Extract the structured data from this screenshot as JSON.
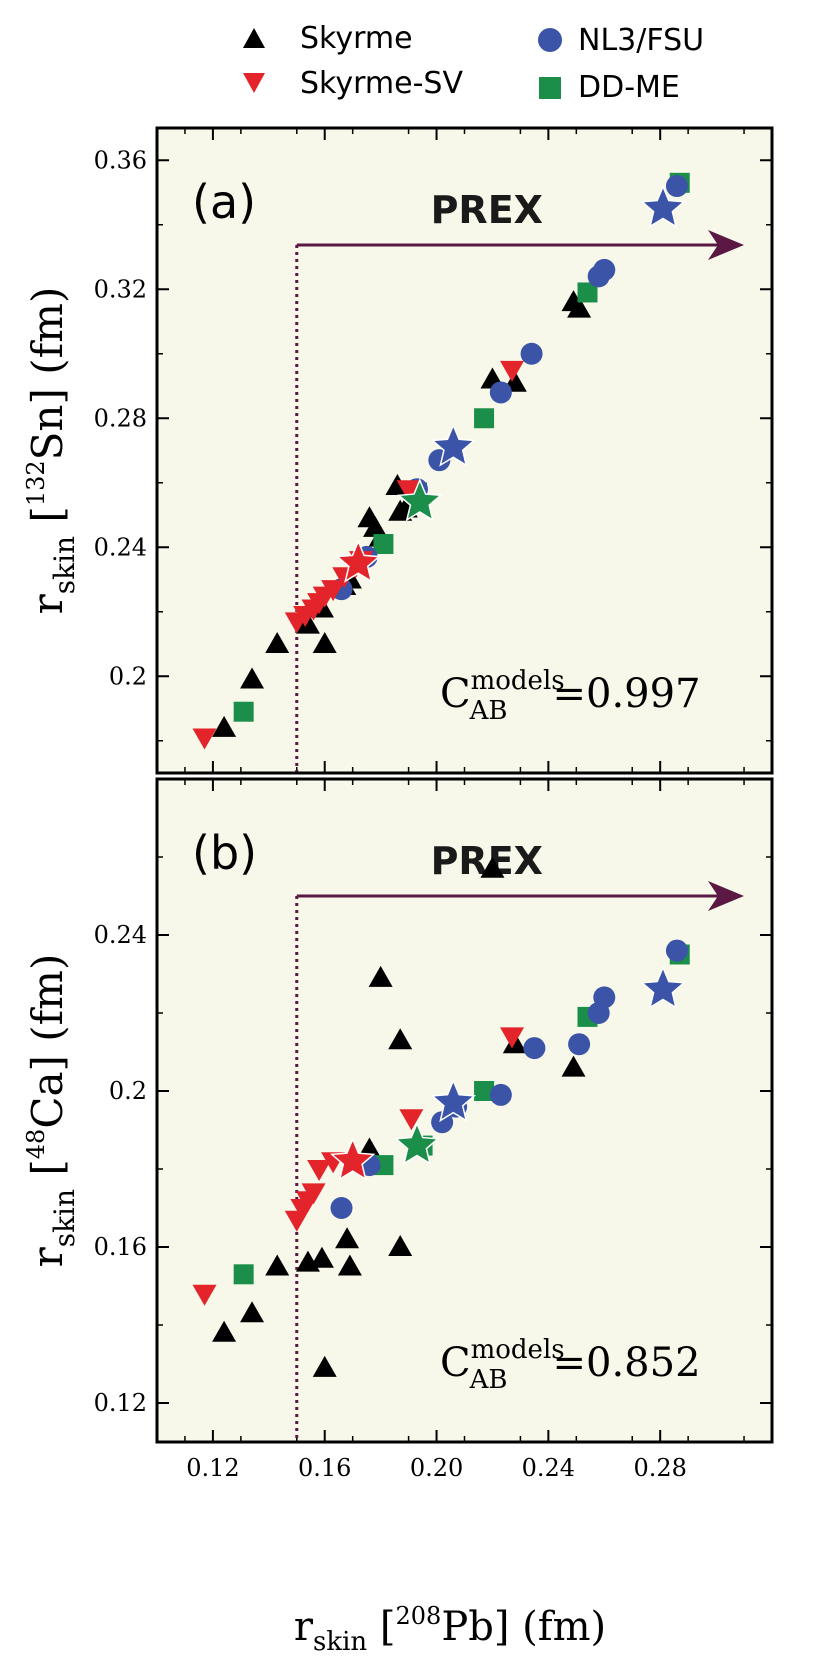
{
  "legend": {
    "skyrme": "Skyrme",
    "skyrme_sv": "Skyrme-SV",
    "nl3_fsu": "NL3/FSU",
    "dd_me": "DD-ME"
  },
  "x_axis_title": {
    "main": "r",
    "sub": "skin",
    "bracket_open": " [",
    "sup": "208",
    "tail": "Pb] (fm)"
  },
  "colors": {
    "skyrme": "#000000",
    "skyrme_sv": "#e3242b",
    "nl3_fsu": "#3b54a8",
    "dd_me": "#1b8f4a",
    "panel_bg": "#f7f8e9",
    "prex": "#5a1843"
  },
  "chart_data": [
    {
      "type": "scatter",
      "panel_label": "(a)",
      "prex_label": "PREX",
      "prex_x": 0.15,
      "ylabel": {
        "main": "r",
        "sub": "skin",
        "bracket_open": " [",
        "sup": "132",
        "tail": "Sn] (fm)"
      },
      "correlation": {
        "symbol": "C",
        "sup": "models",
        "sub": "AB",
        "value": "=0.997"
      },
      "xlim": [
        0.1,
        0.32
      ],
      "ylim": [
        0.17,
        0.37
      ],
      "x_ticks": [
        "0.12",
        "0.16",
        "0.20",
        "0.24",
        "0.28"
      ],
      "y_ticks": [
        "0.2",
        "0.24",
        "0.28",
        "0.32",
        "0.36"
      ],
      "series": [
        {
          "name": "Skyrme",
          "marker": "triangle",
          "points": [
            [
              0.124,
              0.184
            ],
            [
              0.134,
              0.199
            ],
            [
              0.143,
              0.21
            ],
            [
              0.154,
              0.216
            ],
            [
              0.159,
              0.221
            ],
            [
              0.16,
              0.21
            ],
            [
              0.167,
              0.228
            ],
            [
              0.169,
              0.23
            ],
            [
              0.176,
              0.249
            ],
            [
              0.178,
              0.246
            ],
            [
              0.18,
              0.243
            ],
            [
              0.186,
              0.259
            ],
            [
              0.187,
              0.251
            ],
            [
              0.189,
              0.252
            ],
            [
              0.22,
              0.292
            ],
            [
              0.228,
              0.291
            ],
            [
              0.249,
              0.316
            ],
            [
              0.251,
              0.314
            ]
          ]
        },
        {
          "name": "Skyrme-SV",
          "marker": "triangle-down",
          "points": [
            [
              0.117,
              0.181
            ],
            [
              0.15,
              0.217
            ],
            [
              0.153,
              0.219
            ],
            [
              0.156,
              0.221
            ],
            [
              0.158,
              0.223
            ],
            [
              0.16,
              0.225
            ],
            [
              0.163,
              0.227
            ],
            [
              0.167,
              0.231
            ],
            [
              0.171,
              0.234
            ],
            [
              0.173,
              0.236
            ],
            [
              0.19,
              0.258
            ],
            [
              0.227,
              0.295
            ]
          ]
        },
        {
          "name": "NL3/FSU",
          "marker": "circle",
          "points": [
            [
              0.166,
              0.227
            ],
            [
              0.175,
              0.237
            ],
            [
              0.193,
              0.258
            ],
            [
              0.201,
              0.267
            ],
            [
              0.223,
              0.288
            ],
            [
              0.234,
              0.3
            ],
            [
              0.258,
              0.324
            ],
            [
              0.26,
              0.326
            ],
            [
              0.286,
              0.352
            ]
          ]
        },
        {
          "name": "DD-ME",
          "marker": "square",
          "points": [
            [
              0.131,
              0.189
            ],
            [
              0.181,
              0.241
            ],
            [
              0.193,
              0.257
            ],
            [
              0.217,
              0.28
            ],
            [
              0.254,
              0.319
            ],
            [
              0.287,
              0.353
            ]
          ]
        },
        {
          "name": "",
          "marker": "star-red",
          "points": [
            [
              0.172,
              0.235
            ]
          ]
        },
        {
          "name": "",
          "marker": "star-green",
          "points": [
            [
              0.194,
              0.254
            ]
          ]
        },
        {
          "name": "",
          "marker": "star-blue",
          "points": [
            [
              0.206,
              0.271
            ],
            [
              0.281,
              0.345
            ]
          ]
        }
      ]
    },
    {
      "type": "scatter",
      "panel_label": "(b)",
      "prex_label": "PREX",
      "prex_x": 0.15,
      "ylabel": {
        "main": "r",
        "sub": "skin",
        "bracket_open": " [",
        "sup": "48",
        "tail": "Ca] (fm)"
      },
      "correlation": {
        "symbol": "C",
        "sup": "models",
        "sub": "AB",
        "value": "=0.852"
      },
      "xlim": [
        0.1,
        0.32
      ],
      "ylim": [
        0.11,
        0.28
      ],
      "x_ticks": [
        "0.12",
        "0.16",
        "0.20",
        "0.24",
        "0.28"
      ],
      "y_ticks": [
        "0.12",
        "0.16",
        "0.2",
        "0.24"
      ],
      "series": [
        {
          "name": "Skyrme",
          "marker": "triangle",
          "points": [
            [
              0.124,
              0.138
            ],
            [
              0.134,
              0.143
            ],
            [
              0.143,
              0.155
            ],
            [
              0.154,
              0.156
            ],
            [
              0.159,
              0.157
            ],
            [
              0.16,
              0.129
            ],
            [
              0.168,
              0.162
            ],
            [
              0.169,
              0.155
            ],
            [
              0.176,
              0.185
            ],
            [
              0.18,
              0.229
            ],
            [
              0.187,
              0.213
            ],
            [
              0.187,
              0.16
            ],
            [
              0.22,
              0.257
            ],
            [
              0.228,
              0.212
            ],
            [
              0.249,
              0.206
            ]
          ]
        },
        {
          "name": "Skyrme-SV",
          "marker": "triangle-down",
          "points": [
            [
              0.117,
              0.148
            ],
            [
              0.15,
              0.167
            ],
            [
              0.152,
              0.17
            ],
            [
              0.154,
              0.172
            ],
            [
              0.156,
              0.174
            ],
            [
              0.158,
              0.18
            ],
            [
              0.163,
              0.182
            ],
            [
              0.191,
              0.193
            ],
            [
              0.227,
              0.214
            ]
          ]
        },
        {
          "name": "NL3/FSU",
          "marker": "circle",
          "points": [
            [
              0.166,
              0.17
            ],
            [
              0.176,
              0.181
            ],
            [
              0.202,
              0.192
            ],
            [
              0.207,
              0.196
            ],
            [
              0.223,
              0.199
            ],
            [
              0.235,
              0.211
            ],
            [
              0.251,
              0.212
            ],
            [
              0.258,
              0.22
            ],
            [
              0.26,
              0.224
            ],
            [
              0.286,
              0.236
            ]
          ]
        },
        {
          "name": "DD-ME",
          "marker": "square",
          "points": [
            [
              0.131,
              0.153
            ],
            [
              0.181,
              0.181
            ],
            [
              0.195,
              0.186
            ],
            [
              0.217,
              0.2
            ],
            [
              0.254,
              0.219
            ],
            [
              0.287,
              0.235
            ]
          ]
        },
        {
          "name": "",
          "marker": "star-red",
          "points": [
            [
              0.17,
              0.182
            ]
          ]
        },
        {
          "name": "",
          "marker": "star-green",
          "points": [
            [
              0.193,
              0.186
            ]
          ]
        },
        {
          "name": "",
          "marker": "star-blue",
          "points": [
            [
              0.206,
              0.197
            ],
            [
              0.281,
              0.226
            ]
          ]
        }
      ]
    }
  ]
}
